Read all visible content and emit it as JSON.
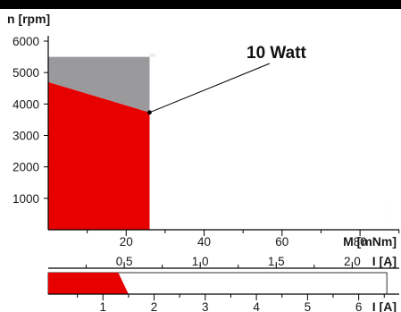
{
  "chart_data": {
    "type": "area",
    "y_axis": {
      "label": "n [rpm]",
      "range": [
        0,
        6000
      ],
      "ticks": [
        1000,
        2000,
        3000,
        4000,
        5000,
        6000
      ],
      "tick_labels": [
        "1000",
        "2000",
        "3000",
        "4000",
        "5000",
        "6000"
      ]
    },
    "x_axis_torque": {
      "label": "M [mNm]",
      "range": [
        0,
        88
      ],
      "ticks": [
        20,
        40,
        60,
        80
      ],
      "tick_labels": [
        "20",
        "40",
        "60",
        "80"
      ]
    },
    "x_axis_current_1": {
      "label": "I [A]",
      "ticks": [
        0.5,
        1.0,
        1.5,
        2.0
      ],
      "tick_labels": [
        "0,5",
        "1,0",
        "1,5",
        "2,0"
      ]
    },
    "x_axis_current_2": {
      "label": "I [A]",
      "ticks": [
        1,
        2,
        3,
        4,
        5,
        6
      ],
      "tick_labels": [
        "1",
        "2",
        "3",
        "4",
        "5",
        "6"
      ]
    },
    "regions": [
      {
        "id": "continuous-operation",
        "color": "#e60000",
        "points": [
          [
            0,
            0
          ],
          [
            0,
            4700
          ],
          [
            26,
            3730
          ],
          [
            26,
            0
          ]
        ]
      },
      {
        "id": "short-term-operation",
        "color": "#9a9a9c",
        "points": [
          [
            0,
            4700
          ],
          [
            0,
            5500
          ],
          [
            26,
            5500
          ],
          [
            26,
            3730
          ]
        ]
      }
    ],
    "power_limit": {
      "id": "intermittent-operation",
      "color": "#ececec",
      "watts": 10,
      "m_start": 27.5,
      "m_end": 87,
      "n_floor": 1000
    },
    "annotation": {
      "text": "10 Watt",
      "point": [
        26,
        3730
      ]
    },
    "current_bar": {
      "red_end": 1.5,
      "red_start_value": 1.3,
      "white_end": 6.55,
      "range_max": 6.6
    }
  }
}
